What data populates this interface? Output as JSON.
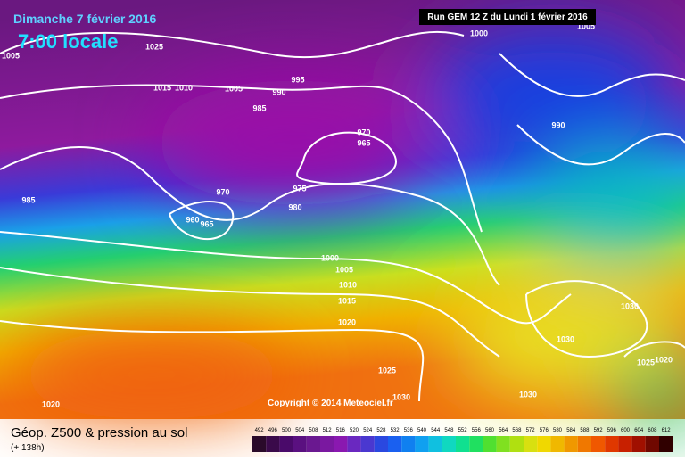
{
  "header": {
    "date": "Dimanche 7 février 2016",
    "time": "7:00 locale",
    "run": "Run GEM 12 Z du Lundi 1 février 2016"
  },
  "copyright": "Copyright © 2014 Meteociel.fr",
  "footer": {
    "title": "Géop. Z500 & pression au sol",
    "lead": "(+ 138h)"
  },
  "isobars": [
    1025,
    1005,
    1015,
    1010,
    1005,
    990,
    995,
    985,
    970,
    965,
    970,
    975,
    980,
    960,
    965,
    985,
    1000,
    1005,
    1010,
    1015,
    1020,
    1025,
    1030,
    1030,
    1030,
    1030,
    1025,
    1020,
    1020,
    990,
    1000,
    1005
  ],
  "scale": [
    492,
    496,
    500,
    504,
    508,
    512,
    516,
    520,
    524,
    528,
    532,
    536,
    540,
    544,
    548,
    552,
    556,
    560,
    564,
    568,
    572,
    576,
    580,
    584,
    588,
    592,
    596,
    600,
    604,
    608,
    612
  ]
}
